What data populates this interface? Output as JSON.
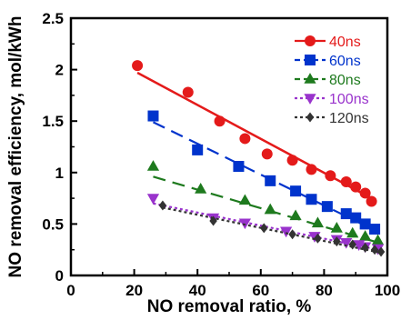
{
  "chart_data": {
    "type": "scatter",
    "xlabel": "NO removal ratio, %",
    "ylabel": "NO removal efficiency, mol/kWh",
    "xlim": [
      0,
      100
    ],
    "ylim": [
      0,
      2.5
    ],
    "x_ticks": [
      "0",
      "20",
      "40",
      "60",
      "80",
      "100"
    ],
    "y_ticks": [
      "0",
      "0.5",
      "1",
      "1.5",
      "2",
      "2.5"
    ],
    "grid": false,
    "legend_position": "top-right",
    "series": [
      {
        "name": "40ns",
        "color": "#e41a1a",
        "marker": "circle",
        "line_style": "solid",
        "points": [
          [
            21,
            2.04
          ],
          [
            37,
            1.78
          ],
          [
            47,
            1.5
          ],
          [
            55,
            1.33
          ],
          [
            62,
            1.18
          ],
          [
            70,
            1.12
          ],
          [
            76,
            1.03
          ],
          [
            82,
            0.97
          ],
          [
            87,
            0.91
          ],
          [
            90,
            0.86
          ],
          [
            93,
            0.8
          ],
          [
            95,
            0.72
          ]
        ],
        "fit": [
          [
            21,
            1.97
          ],
          [
            95,
            0.75
          ]
        ]
      },
      {
        "name": "60ns",
        "color": "#0033cc",
        "marker": "square",
        "line_style": "dashed",
        "points": [
          [
            26,
            1.55
          ],
          [
            40,
            1.22
          ],
          [
            53,
            1.06
          ],
          [
            63,
            0.92
          ],
          [
            71,
            0.82
          ],
          [
            76,
            0.74
          ],
          [
            81,
            0.67
          ],
          [
            87,
            0.6
          ],
          [
            90,
            0.56
          ],
          [
            93,
            0.5
          ],
          [
            96,
            0.45
          ]
        ],
        "fit": [
          [
            26,
            1.49
          ],
          [
            96,
            0.44
          ]
        ]
      },
      {
        "name": "80ns",
        "color": "#1e7a1e",
        "marker": "triangle-up",
        "line_style": "dashed",
        "points": [
          [
            26,
            1.06
          ],
          [
            41,
            0.84
          ],
          [
            55,
            0.73
          ],
          [
            63,
            0.64
          ],
          [
            71,
            0.58
          ],
          [
            78,
            0.51
          ],
          [
            84,
            0.46
          ],
          [
            89,
            0.41
          ],
          [
            93,
            0.38
          ],
          [
            97,
            0.34
          ]
        ],
        "fit": [
          [
            26,
            0.96
          ],
          [
            97,
            0.32
          ]
        ]
      },
      {
        "name": "100ns",
        "color": "#9933cc",
        "marker": "triangle-down",
        "line_style": "dotted",
        "points": [
          [
            26,
            0.75
          ],
          [
            45,
            0.56
          ],
          [
            55,
            0.51
          ],
          [
            68,
            0.43
          ],
          [
            77,
            0.38
          ],
          [
            84,
            0.35
          ],
          [
            87,
            0.32
          ],
          [
            91,
            0.3
          ],
          [
            93,
            0.28
          ],
          [
            97,
            0.26
          ]
        ],
        "fit": [
          [
            26,
            0.7
          ],
          [
            97,
            0.25
          ]
        ]
      },
      {
        "name": "120ns",
        "color": "#333333",
        "marker": "diamond",
        "line_style": "dotted",
        "points": [
          [
            29,
            0.68
          ],
          [
            45,
            0.53
          ],
          [
            61,
            0.46
          ],
          [
            70,
            0.4
          ],
          [
            78,
            0.36
          ],
          [
            84,
            0.33
          ],
          [
            89,
            0.3
          ],
          [
            93,
            0.27
          ],
          [
            96,
            0.25
          ],
          [
            98,
            0.23
          ]
        ],
        "fit": [
          [
            29,
            0.66
          ],
          [
            98,
            0.22
          ]
        ]
      }
    ]
  }
}
